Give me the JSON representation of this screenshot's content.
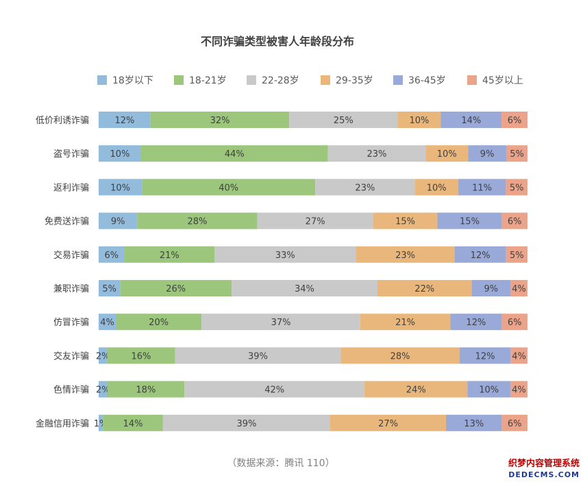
{
  "chart_data": {
    "type": "bar",
    "orientation": "horizontal",
    "stacked": true,
    "percent_stacked": true,
    "title": "不同诈骗类型被害人年龄段分布",
    "legend_position": "top",
    "grid": false,
    "categories": [
      "低价利诱诈骗",
      "盗号诈骗",
      "返利诈骗",
      "免费送诈骗",
      "交易诈骗",
      "兼职诈骗",
      "仿冒诈骗",
      "交友诈骗",
      "色情诈骗",
      "金融信用诈骗"
    ],
    "series": [
      {
        "name": "18岁以下",
        "color": "#92bbdc",
        "values": [
          12,
          10,
          10,
          9,
          6,
          5,
          4,
          2,
          2,
          1
        ]
      },
      {
        "name": "18-21岁",
        "color": "#9bc67c",
        "values": [
          32,
          44,
          40,
          28,
          21,
          26,
          20,
          16,
          18,
          14
        ]
      },
      {
        "name": "22-28岁",
        "color": "#c9c9c9",
        "values": [
          25,
          23,
          23,
          27,
          33,
          34,
          37,
          39,
          42,
          39
        ]
      },
      {
        "name": "29-35岁",
        "color": "#e9b77b",
        "values": [
          10,
          10,
          10,
          15,
          23,
          22,
          21,
          28,
          24,
          27
        ]
      },
      {
        "name": "36-45岁",
        "color": "#99a9d8",
        "values": [
          14,
          9,
          11,
          15,
          12,
          9,
          12,
          12,
          10,
          13
        ]
      },
      {
        "name": "45岁以上",
        "color": "#eba38a",
        "values": [
          6,
          5,
          5,
          6,
          5,
          4,
          6,
          4,
          4,
          6
        ]
      }
    ]
  },
  "source_note": "（数据来源：腾讯 110）",
  "watermark": {
    "line1": "织梦内容管理系统",
    "line2": "DEDECMS.COM"
  }
}
